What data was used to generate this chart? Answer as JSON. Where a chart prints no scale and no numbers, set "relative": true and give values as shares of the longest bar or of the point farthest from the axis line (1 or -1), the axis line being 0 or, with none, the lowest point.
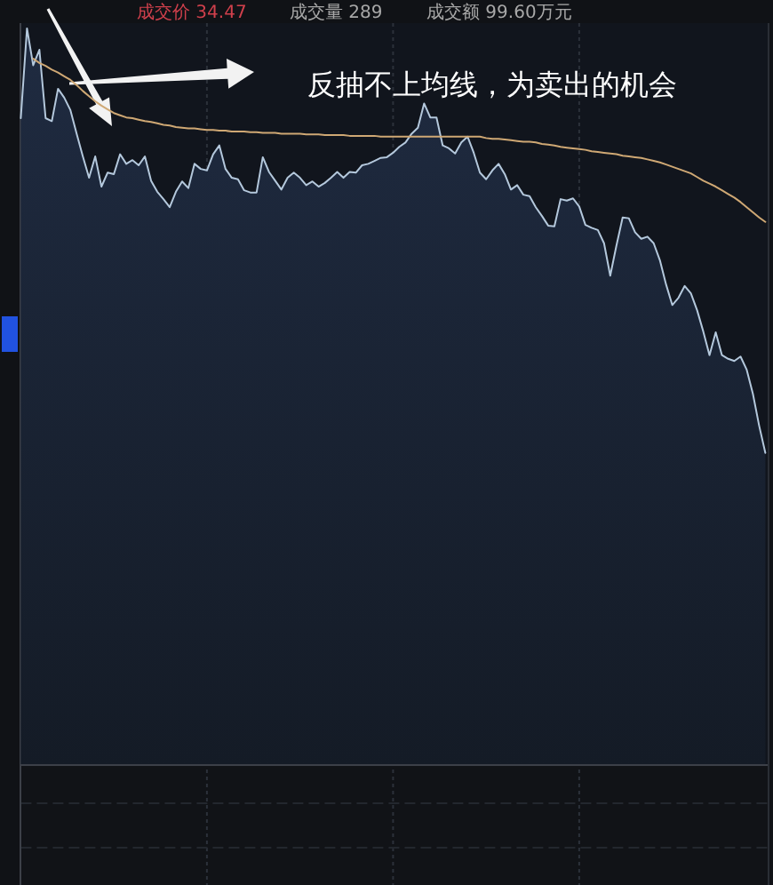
{
  "chart_data": {
    "type": "area",
    "relative": true,
    "grid": "x",
    "categories": [
      null,
      null,
      null,
      null,
      null,
      null,
      null,
      null,
      null,
      null,
      null,
      null,
      null,
      null,
      null,
      null,
      null,
      null,
      null,
      null,
      null,
      null,
      null,
      null,
      null,
      null,
      null,
      null,
      null,
      null,
      null,
      null,
      null,
      null,
      null,
      null,
      null,
      null,
      null,
      null,
      null,
      null,
      null,
      null,
      null,
      null,
      null,
      null,
      null,
      null,
      null,
      null,
      null,
      null,
      null,
      null,
      null,
      null,
      null,
      null,
      null,
      null,
      null,
      null,
      null,
      null,
      null,
      null,
      null,
      null,
      null,
      null,
      null,
      null,
      null,
      null,
      null,
      null,
      null,
      null,
      null,
      null,
      null,
      null,
      null,
      null,
      null,
      null,
      null,
      null,
      null,
      null,
      null,
      null,
      null,
      null,
      null,
      null,
      null,
      null,
      null,
      null,
      null,
      null,
      null,
      null,
      null,
      null,
      null,
      null,
      null,
      null,
      null,
      null,
      null,
      null,
      null,
      null,
      null,
      null,
      null
    ],
    "series": [
      {
        "color": "#b4c8dc",
        "values": [
          0.878,
          1,
          0.95,
          0.971,
          0.878,
          0.874,
          0.918,
          0.906,
          0.889,
          0.857,
          0.826,
          0.797,
          0.826,
          0.785,
          0.804,
          0.802,
          0.829,
          0.816,
          0.821,
          0.814,
          0.826,
          0.793,
          0.778,
          0.768,
          0.757,
          0.778,
          0.792,
          0.783,
          0.816,
          0.809,
          0.807,
          0.829,
          0.841,
          0.809,
          0.797,
          0.795,
          0.78,
          0.777,
          0.777,
          0.825,
          0.805,
          0.793,
          0.781,
          0.797,
          0.804,
          0.797,
          0.787,
          0.792,
          0.785,
          0.79,
          0.797,
          0.805,
          0.797,
          0.805,
          0.804,
          0.814,
          0.816,
          0.82,
          0.824,
          0.825,
          0.831,
          0.839,
          0.845,
          0.857,
          0.865,
          0.898,
          0.879,
          0.879,
          0.841,
          0.837,
          0.83,
          0.845,
          0.853,
          0.831,
          0.804,
          0.795,
          0.807,
          0.816,
          0.802,
          0.781,
          0.787,
          0.774,
          0.772,
          0.757,
          0.745,
          0.732,
          0.731,
          0.768,
          0.766,
          0.769,
          0.758,
          0.733,
          0.729,
          0.726,
          0.708,
          0.664,
          0.705,
          0.743,
          0.742,
          0.723,
          0.714,
          0.717,
          0.708,
          0.685,
          0.652,
          0.624,
          0.634,
          0.65,
          0.64,
          0.617,
          0.588,
          0.556,
          0.587,
          0.556,
          0.551,
          0.548,
          0.554,
          0.536,
          0.503,
          0.46,
          0.423
        ]
      },
      {
        "type": "line",
        "color": "#cfa874",
        "values": [
          null,
          null,
          0.959,
          0.953,
          0.949,
          0.944,
          0.94,
          0.935,
          0.93,
          0.923,
          0.915,
          0.908,
          0.901,
          0.895,
          0.89,
          0.885,
          0.882,
          0.879,
          0.878,
          0.876,
          0.874,
          0.873,
          0.871,
          0.869,
          0.868,
          0.866,
          0.865,
          0.864,
          0.864,
          0.863,
          0.862,
          0.862,
          0.861,
          0.861,
          0.86,
          0.86,
          0.86,
          0.859,
          0.859,
          0.858,
          0.858,
          0.858,
          0.857,
          0.857,
          0.857,
          0.857,
          0.856,
          0.856,
          0.856,
          0.855,
          0.855,
          0.855,
          0.855,
          0.854,
          0.854,
          0.854,
          0.854,
          0.854,
          0.853,
          0.853,
          0.853,
          0.853,
          0.853,
          0.853,
          0.853,
          0.853,
          0.853,
          0.853,
          0.853,
          0.853,
          0.853,
          0.853,
          0.853,
          0.853,
          0.853,
          0.851,
          0.85,
          0.85,
          0.849,
          0.848,
          0.847,
          0.846,
          0.846,
          0.845,
          0.843,
          0.842,
          0.841,
          0.839,
          0.838,
          0.837,
          0.836,
          0.835,
          0.833,
          0.832,
          0.831,
          0.83,
          0.829,
          0.827,
          0.826,
          0.825,
          0.824,
          0.822,
          0.82,
          0.818,
          0.815,
          0.812,
          0.809,
          0.806,
          0.803,
          0.798,
          0.793,
          0.789,
          0.785,
          0.78,
          0.775,
          0.77,
          0.764,
          0.757,
          0.75,
          0.743,
          0.737
        ]
      }
    ],
    "annotations": [
      "成交价 34.47",
      "成交量 289",
      "成交额 99.60万元",
      "反抽不上均线，为卖出的机会"
    ]
  }
}
